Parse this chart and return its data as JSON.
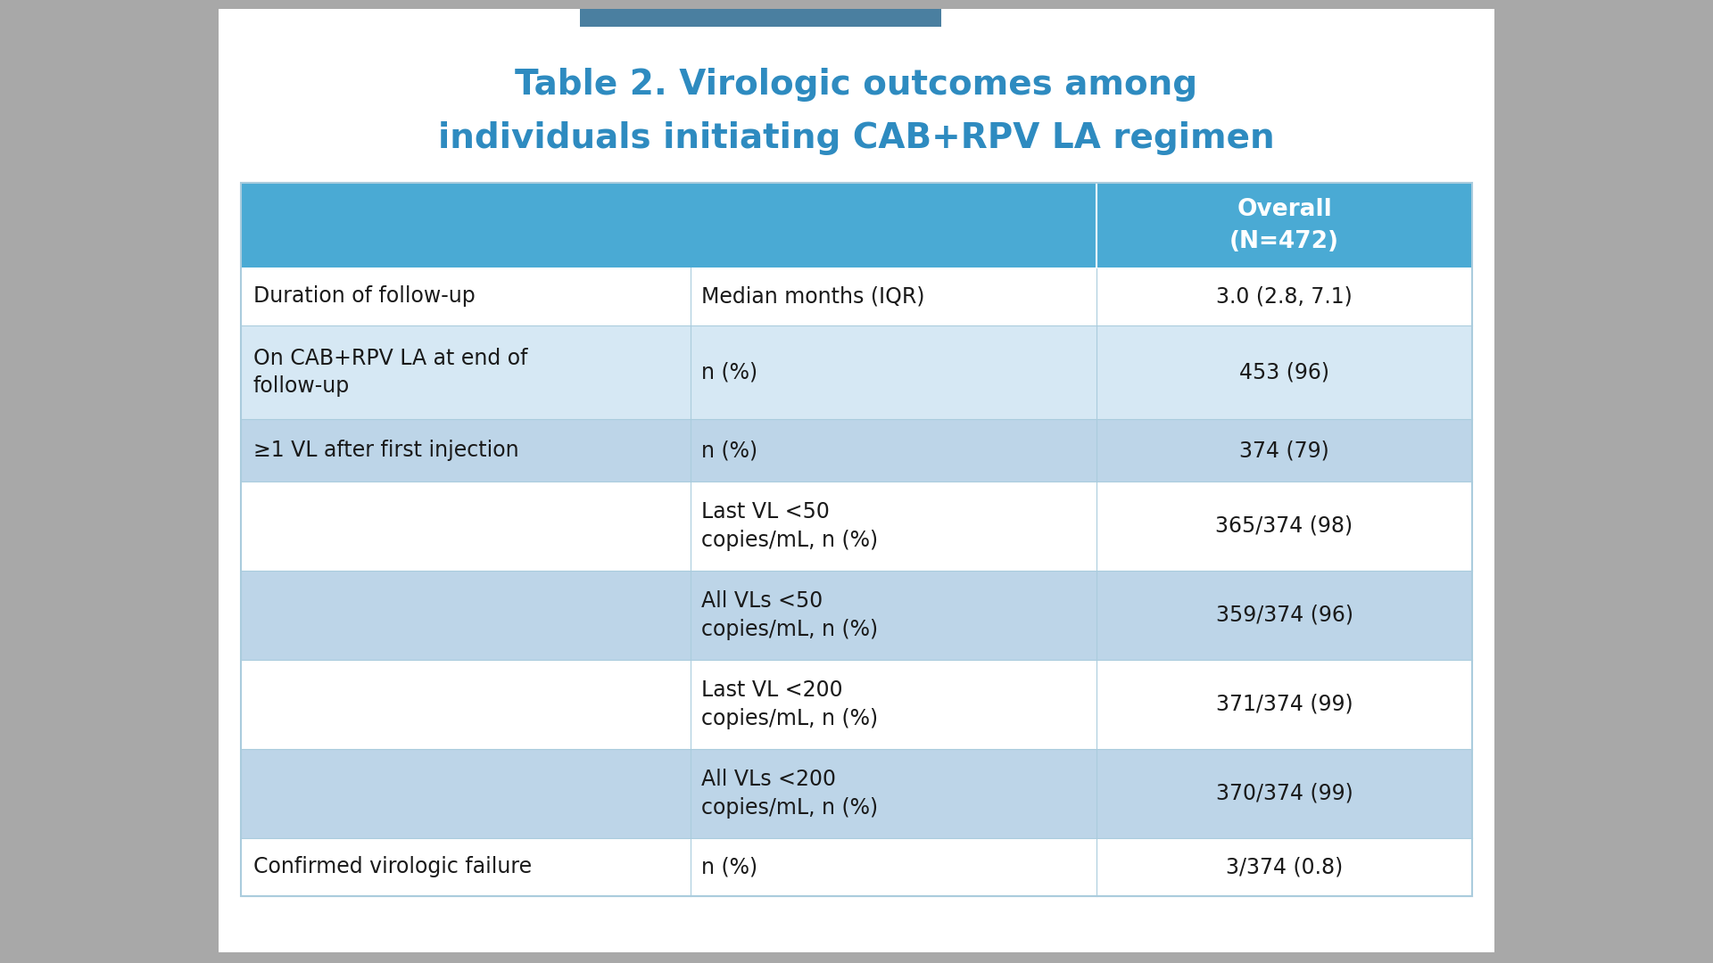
{
  "title_line1": "Table 2. Virologic outcomes among",
  "title_line2": "individuals initiating CAB+RPV LA regimen",
  "title_color": "#2E8BC0",
  "bg_color": "#A8A8A8",
  "card_bg": "#FFFFFF",
  "header_bg": "#4AAAD4",
  "header_text": "Overall\n(N=472)",
  "header_text_color": "#FFFFFF",
  "stripe_white": "#FFFFFF",
  "stripe_light": "#D6E8F4",
  "stripe_mid": "#BDD5E8",
  "divider_color": "#AACCDD",
  "top_bar_color": "#4A7FA0",
  "rows": [
    {
      "col1": "Duration of follow-up",
      "col2": "Median months (IQR)",
      "col3": "3.0 (2.8, 7.1)",
      "stripe": "white"
    },
    {
      "col1": "On CAB+RPV LA at end of\nfollow-up",
      "col2": "n (%)",
      "col3": "453 (96)",
      "stripe": "light"
    },
    {
      "col1": "≥1 VL after first injection",
      "col2": "n (%)",
      "col3": "374 (79)",
      "stripe": "mid"
    },
    {
      "col1": "",
      "col2": "Last VL <50\ncopies/mL, n (%)",
      "col3": "365/374 (98)",
      "stripe": "white"
    },
    {
      "col1": "",
      "col2": "All VLs <50\ncopies/mL, n (%)",
      "col3": "359/374 (96)",
      "stripe": "mid"
    },
    {
      "col1": "",
      "col2": "Last VL <200\ncopies/mL, n (%)",
      "col3": "371/374 (99)",
      "stripe": "white"
    },
    {
      "col1": "",
      "col2": "All VLs <200\ncopies/mL, n (%)",
      "col3": "370/374 (99)",
      "stripe": "mid"
    },
    {
      "col1": "Confirmed virologic failure",
      "col2": "n (%)",
      "col3": "3/374 (0.8)",
      "stripe": "white"
    }
  ],
  "font_size_title": 28,
  "font_size_header": 19,
  "font_size_body": 17
}
